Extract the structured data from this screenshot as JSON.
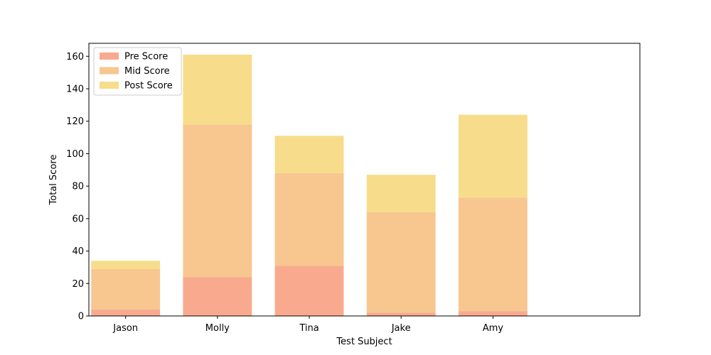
{
  "chart_data": {
    "type": "bar",
    "stacked": true,
    "categories": [
      "Jason",
      "Molly",
      "Tina",
      "Jake",
      "Amy"
    ],
    "series": [
      {
        "name": "Pre Score",
        "values": [
          4,
          24,
          31,
          2,
          3
        ],
        "color": "#F9AA8E"
      },
      {
        "name": "Mid Score",
        "values": [
          25,
          94,
          57,
          62,
          70
        ],
        "color": "#F7C78F"
      },
      {
        "name": "Post Score",
        "values": [
          5,
          43,
          23,
          23,
          51
        ],
        "color": "#F7DC8B"
      }
    ],
    "xlabel": "Test Subject",
    "ylabel": "Total Score",
    "ylim": [
      0,
      168
    ],
    "yticks": [
      0,
      20,
      40,
      60,
      80,
      100,
      120,
      140,
      160
    ],
    "legend": "top-left",
    "grid": false
  }
}
